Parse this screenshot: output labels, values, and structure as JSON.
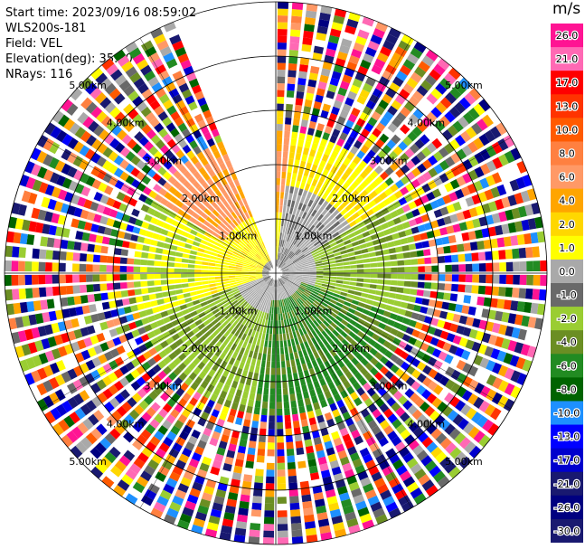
{
  "header": {
    "start_time": "Start time: 2023/09/16 08:59:02",
    "instrument": "WLS200s-181",
    "field": "Field: VEL",
    "elevation": "Elevation(deg): 35.30",
    "nrays": "NRays: 116"
  },
  "colorbar": {
    "unit": "m/s",
    "ticks": [
      "26.0",
      "21.0",
      "17.0",
      "13.0",
      "10.0",
      "8.0",
      "6.0",
      "4.0",
      "2.0",
      "1.0",
      "0.0",
      "-1.0",
      "-2.0",
      "-4.0",
      "-6.0",
      "-8.0",
      "-10.0",
      "-13.0",
      "-17.0",
      "-21.0",
      "-26.0",
      "-30.0"
    ],
    "colors": [
      "#ff1493",
      "#ff69b4",
      "#ff0000",
      "#ff3300",
      "#ff5a00",
      "#ff8040",
      "#ff9966",
      "#ffa500",
      "#ffd700",
      "#ffff00",
      "#a9a9a9",
      "#696969",
      "#9acd32",
      "#6b8e23",
      "#228b22",
      "#006400",
      "#1e90ff",
      "#0000ff",
      "#0000cd",
      "#191970",
      "#000080",
      "#191970"
    ]
  },
  "chart_data": {
    "type": "heatmap",
    "subtype": "ppi-polar",
    "field": "VEL",
    "unit": "m/s",
    "nrays": 116,
    "ring_labels": [
      "1.00km",
      "2.00km",
      "3.00km",
      "4.00km",
      "5.00km"
    ],
    "range_rings_km": [
      1,
      2,
      3,
      4,
      5
    ],
    "max_range_km": 5,
    "missing_sector_deg": [
      -22,
      0
    ],
    "vmin": -30,
    "vmax": 26
  }
}
